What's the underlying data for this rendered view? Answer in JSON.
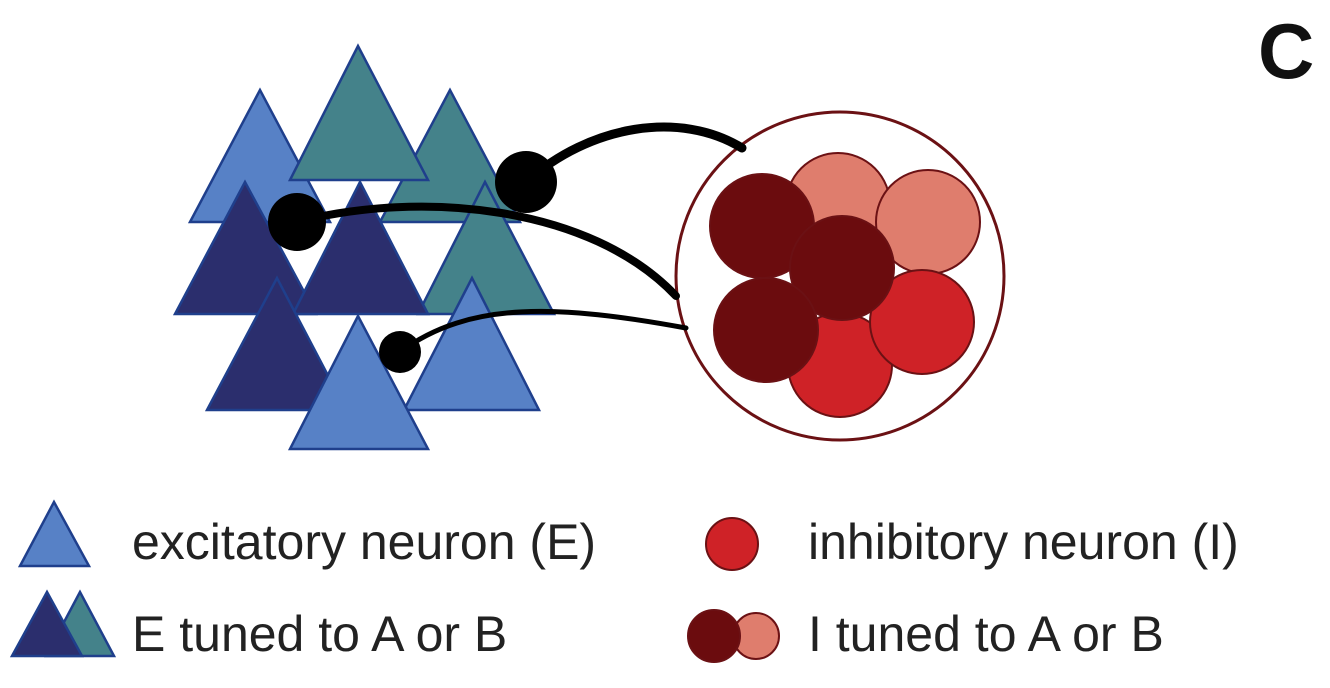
{
  "panel": {
    "letter": "C"
  },
  "legend": {
    "excitatory_label": "excitatory neuron (E)",
    "inhibitory_label": "inhibitory neuron (I)",
    "e_tuned_label": "E tuned to A or B",
    "i_tuned_label": "I tuned to A or B"
  },
  "colors": {
    "excitatory": "#5781c6",
    "excitatory_A": "#2b2e6d",
    "excitatory_B": "#44828a",
    "inhibitory": "#cf2227",
    "inhibitory_A": "#6b0c0e",
    "inhibitory_B": "#df7d6d",
    "triangle_stroke": "#1f3f8c",
    "circle_stroke": "#6b1114",
    "synapse": "#000000"
  }
}
